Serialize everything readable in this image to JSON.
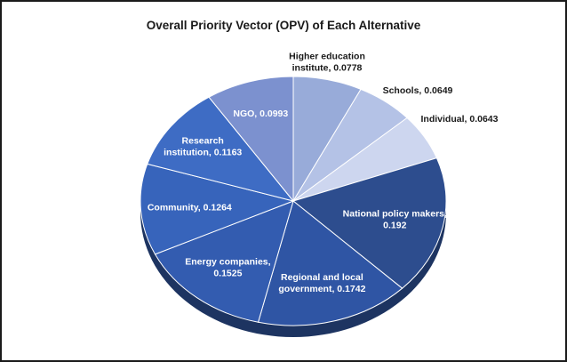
{
  "chart_data": {
    "type": "pie",
    "title": "Overall Priority Vector (OPV) of Each Alternative",
    "slices": [
      {
        "label": "Higher education institute",
        "value": 0.0778,
        "color": "#98abd9",
        "text_lines": [
          "Higher education",
          "institute, 0.0778"
        ],
        "text_color": "#1a1a1a"
      },
      {
        "label": "Schools",
        "value": 0.0649,
        "color": "#b4c2e6",
        "text_lines": [
          "Schools, 0.0649"
        ],
        "text_color": "#1a1a1a"
      },
      {
        "label": "Individual",
        "value": 0.0643,
        "color": "#cdd6ef",
        "text_lines": [
          "Individual, 0.0643"
        ],
        "text_color": "#1a1a1a"
      },
      {
        "label": "National policy makers",
        "value": 0.192,
        "color": "#2d4d8e",
        "text_lines": [
          "National policy makers,",
          "0.192"
        ],
        "text_color": "#ffffff"
      },
      {
        "label": "Regional and local government",
        "value": 0.1742,
        "color": "#2f55a4",
        "text_lines": [
          "Regional and local",
          "government, 0.1742"
        ],
        "text_color": "#ffffff"
      },
      {
        "label": "Energy companies",
        "value": 0.1525,
        "color": "#335cb0",
        "text_lines": [
          "Energy companies,",
          "0.1525"
        ],
        "text_color": "#ffffff"
      },
      {
        "label": "Community",
        "value": 0.1264,
        "color": "#3764bb",
        "text_lines": [
          "Community, 0.1264"
        ],
        "text_color": "#ffffff"
      },
      {
        "label": "Research institution",
        "value": 0.1163,
        "color": "#3e6cc4",
        "text_lines": [
          "Research",
          "institution, 0.1163"
        ],
        "text_color": "#ffffff"
      },
      {
        "label": "NGO",
        "value": 0.0993,
        "color": "#7c91cf",
        "text_lines": [
          "NGO, 0.0993"
        ],
        "text_color": "#ffffff"
      }
    ]
  }
}
